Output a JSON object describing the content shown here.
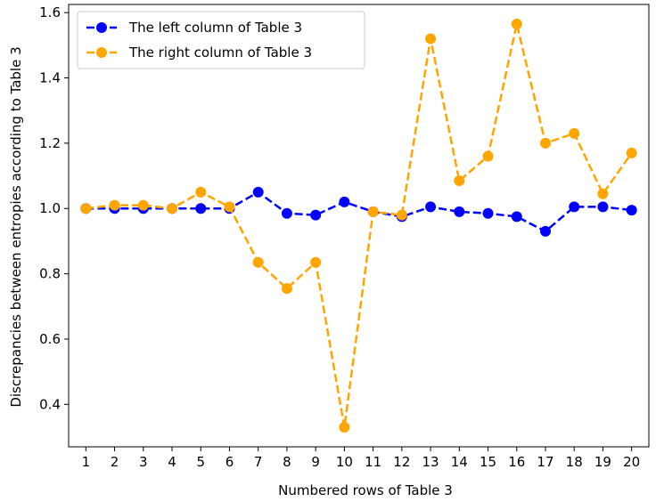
{
  "chart_data": {
    "type": "line",
    "title": "",
    "xlabel": "Numbered rows of Table 3",
    "ylabel": "Discrepancies between entropies according to Table 3",
    "x": [
      1,
      2,
      3,
      4,
      5,
      6,
      7,
      8,
      9,
      10,
      11,
      12,
      13,
      14,
      15,
      16,
      17,
      18,
      19,
      20
    ],
    "xticks": [
      "1",
      "2",
      "3",
      "4",
      "5",
      "6",
      "7",
      "8",
      "9",
      "10",
      "11",
      "12",
      "13",
      "14",
      "15",
      "16",
      "17",
      "18",
      "19",
      "20"
    ],
    "yticks": [
      "0.4",
      "0.6",
      "0.8",
      "1.0",
      "1.2",
      "1.4",
      "1.6"
    ],
    "yticks_values": [
      0.4,
      0.6,
      0.8,
      1.0,
      1.2,
      1.4,
      1.6
    ],
    "xlim": [
      0.4,
      20.6
    ],
    "ylim": [
      0.27,
      1.625
    ],
    "grid": false,
    "legend_position": "top-left",
    "series": [
      {
        "name": "The left column of Table 3",
        "color": "#0000ff",
        "style": "dashed",
        "marker": "circle",
        "values": [
          1.0,
          1.0,
          1.0,
          1.0,
          1.0,
          1.0,
          1.05,
          0.985,
          0.98,
          1.02,
          0.99,
          0.975,
          1.005,
          0.99,
          0.985,
          0.975,
          0.93,
          1.005,
          1.005,
          0.995
        ]
      },
      {
        "name": "The right column of Table 3",
        "color": "#ffa500",
        "style": "dashed",
        "marker": "circle",
        "values": [
          1.0,
          1.01,
          1.01,
          1.0,
          1.05,
          1.005,
          0.835,
          0.755,
          0.835,
          0.33,
          0.99,
          0.98,
          1.52,
          1.085,
          1.16,
          1.565,
          1.2,
          1.23,
          1.045,
          1.17
        ]
      }
    ]
  }
}
